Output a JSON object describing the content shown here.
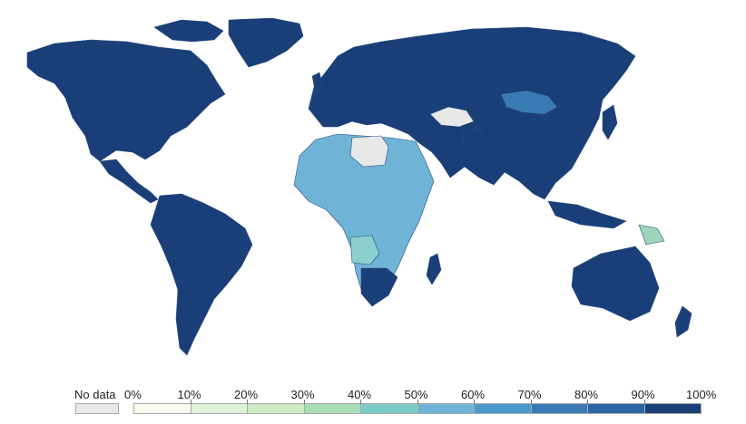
{
  "map": {
    "colors": {
      "full": "#1a3f78",
      "high": "#245a94",
      "mid_high": "#3b7bb5",
      "mid": "#5aa2cc",
      "light_blue": "#6fb4d6",
      "teal": "#8ccfcf",
      "green": "#9dd6b8",
      "no_data": "#e8e8e8",
      "border": "#2a4f80"
    },
    "regions": [
      {
        "name": "north-america",
        "color": "#1a3f78"
      },
      {
        "name": "greenland",
        "color": "#1a3f78"
      },
      {
        "name": "south-america",
        "color": "#1a3f78"
      },
      {
        "name": "europe",
        "color": "#1a3f78"
      },
      {
        "name": "russia-asia",
        "color": "#1a3f78"
      },
      {
        "name": "africa",
        "color": "#6fb4d6"
      },
      {
        "name": "australia",
        "color": "#1a3f78"
      },
      {
        "name": "mongolia",
        "color": "#3b7bb5"
      },
      {
        "name": "libya-egypt",
        "color": "#e8e8e8"
      },
      {
        "name": "angola",
        "color": "#8ccfcf"
      },
      {
        "name": "papua-new-guinea",
        "color": "#9dd6b8"
      }
    ]
  },
  "legend": {
    "no_data_label": "No data",
    "no_data_color": "#e8e8e8",
    "bins": [
      {
        "label": "0%",
        "color": "#f7fcf0"
      },
      {
        "label": "10%",
        "color": "#e0f3db"
      },
      {
        "label": "20%",
        "color": "#ccebc5"
      },
      {
        "label": "30%",
        "color": "#a8ddb5"
      },
      {
        "label": "40%",
        "color": "#7bccc4"
      },
      {
        "label": "50%",
        "color": "#6fb4d6"
      },
      {
        "label": "60%",
        "color": "#4a9bc9"
      },
      {
        "label": "70%",
        "color": "#3b7bb5"
      },
      {
        "label": "80%",
        "color": "#2b66a6"
      },
      {
        "label": "90%",
        "color": "#1a3f78"
      }
    ],
    "end_label": "100%"
  }
}
